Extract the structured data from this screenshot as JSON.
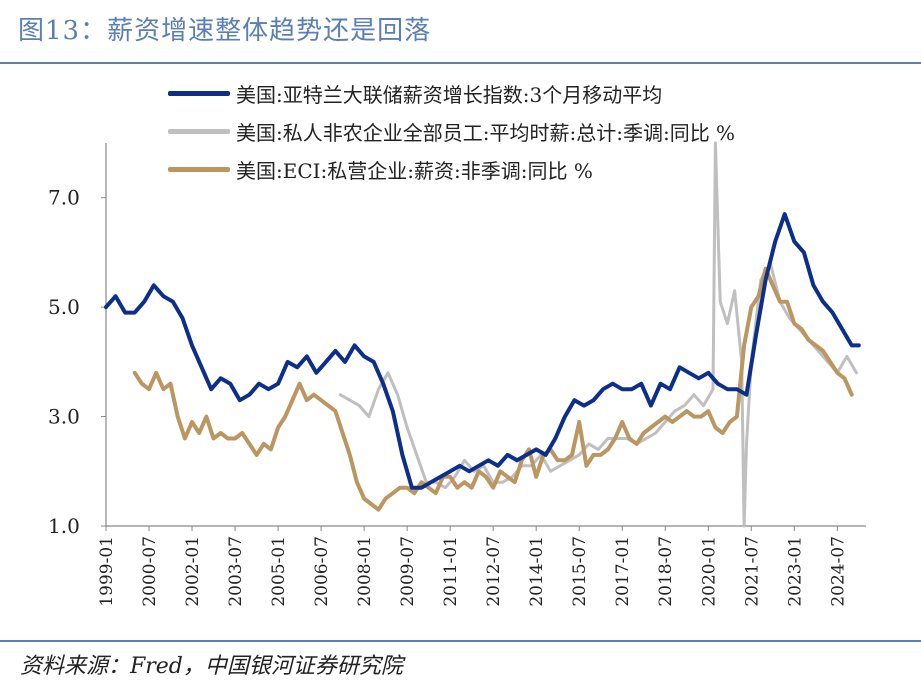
{
  "figure": {
    "title": "图13：薪资增速整体趋势还是回落",
    "source": "资料来源：Fred，中国银河证券研究院"
  },
  "chart_data": {
    "type": "line",
    "title": "",
    "xlabel": "",
    "ylabel": "",
    "ylim": [
      1.0,
      8.0
    ],
    "xlim": [
      "1999-01",
      "2025-07"
    ],
    "yticks": [
      "1.0",
      "3.0",
      "5.0",
      "7.0"
    ],
    "ytick_values": [
      1.0,
      3.0,
      5.0,
      7.0
    ],
    "xticks": [
      "1999-01",
      "2000-07",
      "2002-01",
      "2003-07",
      "2005-01",
      "2006-07",
      "2008-01",
      "2009-07",
      "2011-01",
      "2012-07",
      "2014-01",
      "2015-07",
      "2017-01",
      "2018-07",
      "2020-01",
      "2021-07",
      "2023-01",
      "2024-07"
    ],
    "grid": false,
    "legend_position": "top",
    "series": [
      {
        "name": "美国:亚特兰大联储薪资增长指数:3个月移动平均",
        "color": "#0d2f8c",
        "x": [
          "1999-01",
          "1999-05",
          "1999-09",
          "2000-01",
          "2000-05",
          "2000-09",
          "2001-01",
          "2001-05",
          "2001-09",
          "2002-01",
          "2002-05",
          "2002-09",
          "2003-01",
          "2003-05",
          "2003-09",
          "2004-01",
          "2004-05",
          "2004-09",
          "2005-01",
          "2005-05",
          "2005-09",
          "2006-01",
          "2006-05",
          "2006-09",
          "2007-01",
          "2007-05",
          "2007-09",
          "2008-01",
          "2008-05",
          "2008-09",
          "2009-01",
          "2009-05",
          "2009-09",
          "2010-01",
          "2010-05",
          "2010-09",
          "2011-01",
          "2011-05",
          "2011-09",
          "2012-01",
          "2012-05",
          "2012-09",
          "2013-01",
          "2013-05",
          "2013-09",
          "2014-01",
          "2014-05",
          "2014-09",
          "2015-01",
          "2015-05",
          "2015-09",
          "2016-01",
          "2016-05",
          "2016-09",
          "2017-01",
          "2017-05",
          "2017-09",
          "2018-01",
          "2018-05",
          "2018-09",
          "2019-01",
          "2019-05",
          "2019-09",
          "2020-01",
          "2020-05",
          "2020-09",
          "2021-01",
          "2021-05",
          "2021-09",
          "2022-01",
          "2022-05",
          "2022-09",
          "2023-01",
          "2023-05",
          "2023-09",
          "2024-01",
          "2024-05",
          "2024-09",
          "2025-01",
          "2025-04"
        ],
        "y": [
          5.0,
          5.2,
          4.9,
          4.9,
          5.1,
          5.4,
          5.2,
          5.1,
          4.8,
          4.3,
          3.9,
          3.5,
          3.7,
          3.6,
          3.3,
          3.4,
          3.6,
          3.5,
          3.6,
          4.0,
          3.9,
          4.1,
          3.8,
          4.0,
          4.2,
          4.0,
          4.3,
          4.1,
          4.0,
          3.6,
          3.1,
          2.3,
          1.7,
          1.7,
          1.8,
          1.9,
          2.0,
          2.1,
          2.0,
          2.1,
          2.2,
          2.1,
          2.3,
          2.2,
          2.3,
          2.4,
          2.3,
          2.6,
          3.0,
          3.3,
          3.2,
          3.3,
          3.5,
          3.6,
          3.5,
          3.5,
          3.6,
          3.2,
          3.6,
          3.5,
          3.9,
          3.8,
          3.7,
          3.8,
          3.6,
          3.5,
          3.5,
          3.4,
          4.5,
          5.5,
          6.2,
          6.7,
          6.2,
          6.0,
          5.4,
          5.1,
          4.9,
          4.6,
          4.3,
          4.3
        ]
      },
      {
        "name": "美国:私人非农企业全部员工:平均时薪:总计:季调:同比 %",
        "color": "#bfbfbf",
        "x": [
          "2007-03",
          "2007-07",
          "2007-11",
          "2008-03",
          "2008-07",
          "2008-11",
          "2009-03",
          "2009-07",
          "2009-11",
          "2010-03",
          "2010-07",
          "2010-11",
          "2011-03",
          "2011-07",
          "2011-11",
          "2012-03",
          "2012-07",
          "2012-11",
          "2013-03",
          "2013-07",
          "2013-11",
          "2014-03",
          "2014-07",
          "2014-11",
          "2015-03",
          "2015-07",
          "2015-11",
          "2016-03",
          "2016-07",
          "2016-11",
          "2017-03",
          "2017-07",
          "2017-11",
          "2018-03",
          "2018-07",
          "2018-11",
          "2019-03",
          "2019-07",
          "2019-11",
          "2020-03",
          "2020-04",
          "2020-06",
          "2020-09",
          "2020-12",
          "2021-03",
          "2021-04",
          "2021-05",
          "2021-07",
          "2021-11",
          "2022-03",
          "2022-07",
          "2022-11",
          "2023-03",
          "2023-07",
          "2023-11",
          "2024-03",
          "2024-07",
          "2024-11",
          "2025-03"
        ],
        "y": [
          3.4,
          3.3,
          3.2,
          3.0,
          3.5,
          3.8,
          3.4,
          2.8,
          2.3,
          1.8,
          1.8,
          1.7,
          1.9,
          2.2,
          2.0,
          2.1,
          1.8,
          1.8,
          1.9,
          2.1,
          2.1,
          2.3,
          2.0,
          2.1,
          2.2,
          2.3,
          2.5,
          2.4,
          2.6,
          2.6,
          2.6,
          2.5,
          2.6,
          2.7,
          2.9,
          3.1,
          3.2,
          3.4,
          3.2,
          3.5,
          8.0,
          5.1,
          4.7,
          5.3,
          4.0,
          1.0,
          2.5,
          4.0,
          5.5,
          5.8,
          5.1,
          4.8,
          4.6,
          4.4,
          4.2,
          4.0,
          3.8,
          4.1,
          3.8
        ]
      },
      {
        "name": "美国:ECI:私营企业:薪资:非季调:同比 %",
        "color": "#bc9660",
        "x": [
          "2000-01",
          "2000-04",
          "2000-07",
          "2000-10",
          "2001-01",
          "2001-04",
          "2001-07",
          "2001-10",
          "2002-01",
          "2002-04",
          "2002-07",
          "2002-10",
          "2003-01",
          "2003-04",
          "2003-07",
          "2003-10",
          "2004-01",
          "2004-04",
          "2004-07",
          "2004-10",
          "2005-01",
          "2005-04",
          "2005-07",
          "2005-10",
          "2006-01",
          "2006-04",
          "2006-07",
          "2006-10",
          "2007-01",
          "2007-04",
          "2007-07",
          "2007-10",
          "2008-01",
          "2008-04",
          "2008-07",
          "2008-10",
          "2009-01",
          "2009-04",
          "2009-07",
          "2009-10",
          "2010-01",
          "2010-04",
          "2010-07",
          "2010-10",
          "2011-01",
          "2011-04",
          "2011-07",
          "2011-10",
          "2012-01",
          "2012-04",
          "2012-07",
          "2012-10",
          "2013-01",
          "2013-04",
          "2013-07",
          "2013-10",
          "2014-01",
          "2014-04",
          "2014-07",
          "2014-10",
          "2015-01",
          "2015-04",
          "2015-07",
          "2015-10",
          "2016-01",
          "2016-04",
          "2016-07",
          "2016-10",
          "2017-01",
          "2017-04",
          "2017-07",
          "2017-10",
          "2018-01",
          "2018-04",
          "2018-07",
          "2018-10",
          "2019-01",
          "2019-04",
          "2019-07",
          "2019-10",
          "2020-01",
          "2020-04",
          "2020-07",
          "2020-10",
          "2021-01",
          "2021-04",
          "2021-07",
          "2021-10",
          "2022-01",
          "2022-04",
          "2022-07",
          "2022-10",
          "2023-01",
          "2023-04",
          "2023-07",
          "2023-10",
          "2024-01",
          "2024-04",
          "2024-07",
          "2024-10",
          "2025-01"
        ],
        "y": [
          3.8,
          3.6,
          3.5,
          3.8,
          3.5,
          3.6,
          3.0,
          2.6,
          2.9,
          2.7,
          3.0,
          2.6,
          2.7,
          2.6,
          2.6,
          2.7,
          2.5,
          2.3,
          2.5,
          2.4,
          2.8,
          3.0,
          3.3,
          3.6,
          3.3,
          3.4,
          3.3,
          3.2,
          3.1,
          2.7,
          2.3,
          1.8,
          1.5,
          1.4,
          1.3,
          1.5,
          1.6,
          1.7,
          1.7,
          1.6,
          1.8,
          1.7,
          1.6,
          1.9,
          1.9,
          1.7,
          1.8,
          1.7,
          2.0,
          1.9,
          1.7,
          2.0,
          1.9,
          1.8,
          2.2,
          2.4,
          1.9,
          2.3,
          2.4,
          2.2,
          2.2,
          2.3,
          2.9,
          2.1,
          2.3,
          2.3,
          2.4,
          2.6,
          2.9,
          2.6,
          2.5,
          2.7,
          2.8,
          2.9,
          3.0,
          2.9,
          3.0,
          3.1,
          3.0,
          3.0,
          3.1,
          2.8,
          2.7,
          2.9,
          3.0,
          4.3,
          5.0,
          5.2,
          5.7,
          5.4,
          5.1,
          5.1,
          4.7,
          4.6,
          4.4,
          4.3,
          4.2,
          4.0,
          3.8,
          3.7,
          3.4
        ]
      }
    ]
  }
}
